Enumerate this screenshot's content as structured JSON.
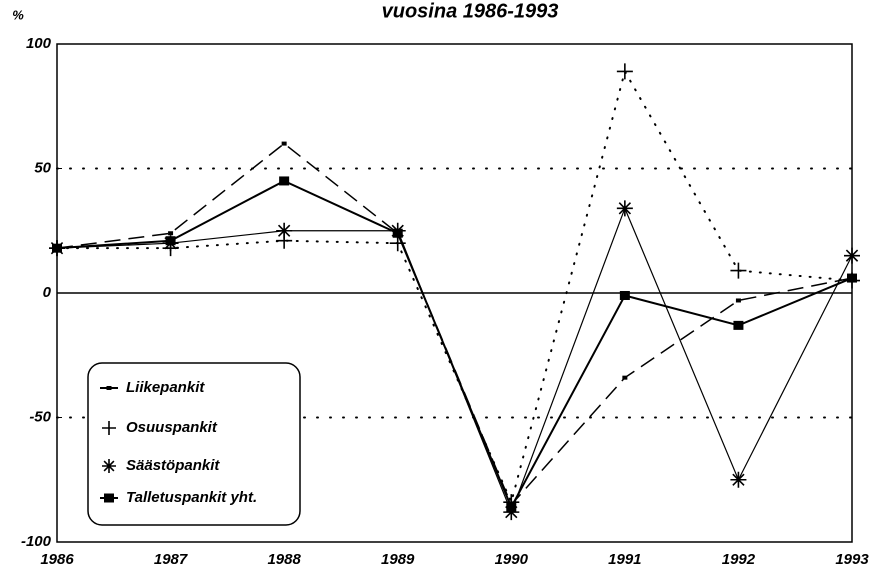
{
  "chart_data": {
    "type": "line",
    "title": "vuosina 1986-1993",
    "y_label": "%",
    "categories": [
      "1986",
      "1987",
      "1988",
      "1989",
      "1990",
      "1991",
      "1992",
      "1993"
    ],
    "series": [
      {
        "name": "Liikepankit",
        "color": "#000000",
        "style": "dashed",
        "marker": "dot",
        "values": [
          18,
          24,
          60,
          24,
          -85,
          -34,
          -3,
          6
        ]
      },
      {
        "name": "Osuuspankit",
        "color": "#000000",
        "style": "dotted",
        "marker": "plus",
        "values": [
          18,
          18,
          21,
          20,
          -84,
          89,
          9,
          5
        ]
      },
      {
        "name": "Säästöpankit",
        "color": "#000000",
        "style": "solid",
        "marker": "asterisk",
        "values": [
          18,
          20,
          25,
          25,
          -88,
          34,
          -75,
          15
        ]
      },
      {
        "name": "Talletuspankit yht.",
        "color": "#000000",
        "style": "solid-bold",
        "marker": "square",
        "values": [
          18,
          21,
          45,
          24,
          -86,
          -1,
          -13,
          6
        ]
      }
    ],
    "ylim": [
      -100,
      100
    ],
    "yticks": [
      -100,
      -50,
      0,
      50,
      100
    ],
    "grid": true,
    "legend": "lower left"
  }
}
